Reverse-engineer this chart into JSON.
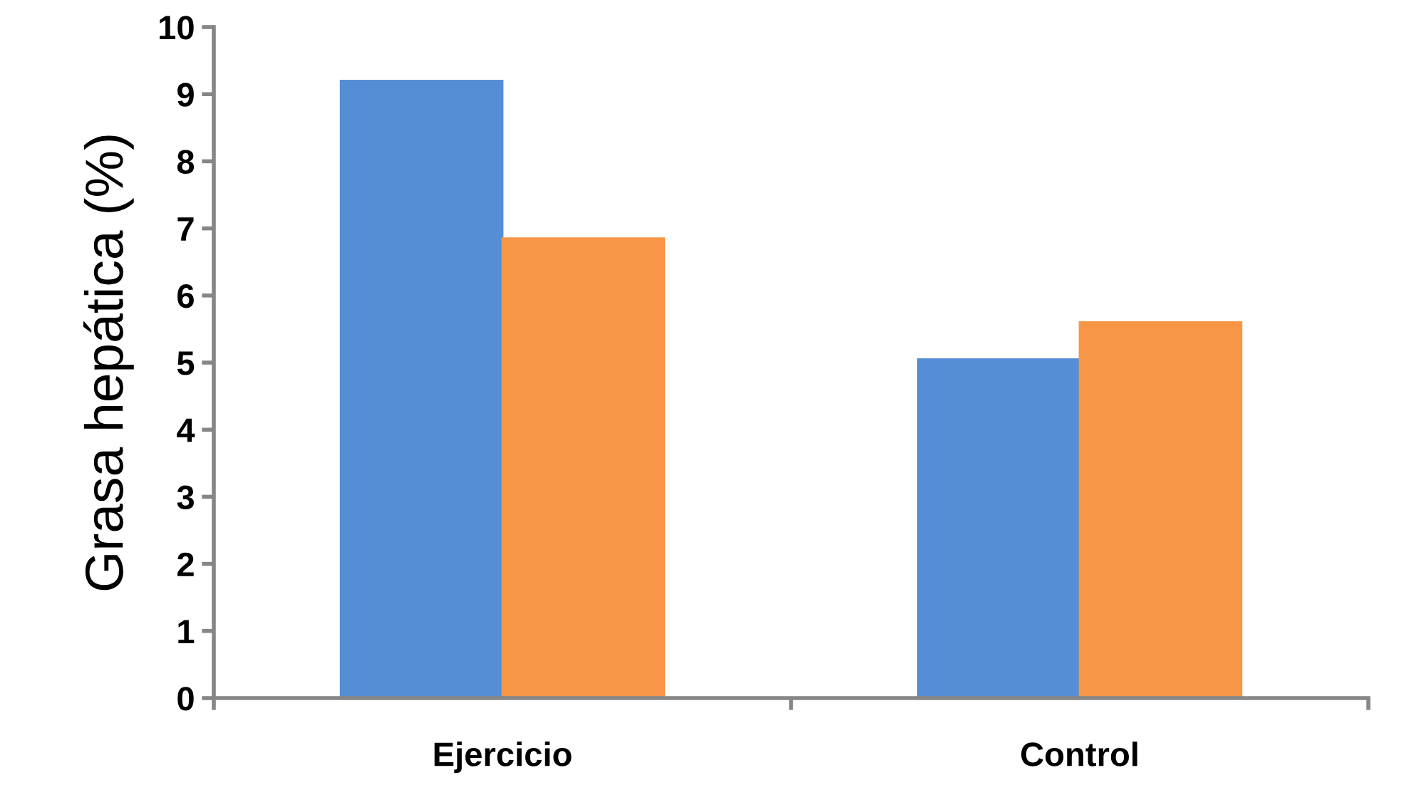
{
  "chart_data": {
    "type": "bar",
    "ylabel": "Grasa hepática (%)",
    "categories": [
      "Ejercicio",
      "Control"
    ],
    "series": [
      {
        "color": "#558ed5",
        "values": [
          9.2,
          5.05
        ]
      },
      {
        "color": "#f79646",
        "values": [
          6.85,
          5.6
        ]
      }
    ],
    "ylim": [
      0,
      10
    ],
    "yticks": [
      0,
      1,
      2,
      3,
      4,
      5,
      6,
      7,
      8,
      9,
      10
    ],
    "grid": false,
    "legend": false
  }
}
